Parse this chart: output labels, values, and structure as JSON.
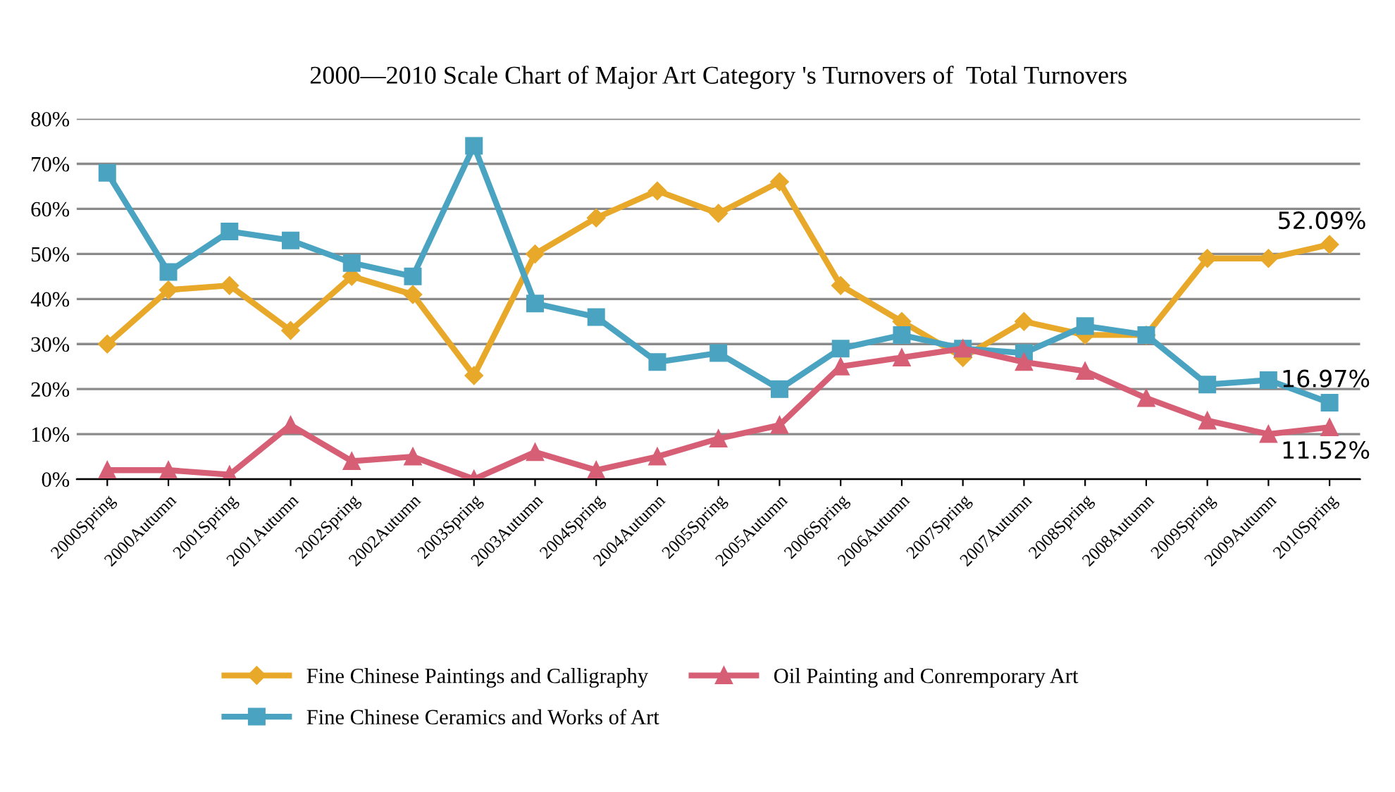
{
  "chart_data": {
    "type": "line",
    "title": "2000—2010 Scale Chart of Major Art Category 's Turnovers of  Total Turnovers",
    "categories": [
      "2000Spring",
      "2000Autumn",
      "2001Spring",
      "2001Autumn",
      "2002Spring",
      "2002Autumn",
      "2003Spring",
      "2003Autumn",
      "2004Spring",
      "2004Autumn",
      "2005Spring",
      "2005Autumn",
      "2006Spring",
      "2006Autumn",
      "2007Spring",
      "2007Autumn",
      "2008Spring",
      "2008Autumn",
      "2009Spring",
      "2009Autumn",
      "2010Spring"
    ],
    "series": [
      {
        "name": "Fine Chinese Paintings and Calligraphy",
        "color": "#e8a92a",
        "marker": "diamond",
        "values": [
          30,
          42,
          43,
          33,
          45,
          41,
          23,
          50,
          58,
          64,
          59,
          66,
          43,
          35,
          27,
          35,
          32,
          32,
          49,
          49,
          52.09
        ]
      },
      {
        "name": "Fine Chinese Ceramics and Works of Art",
        "color": "#4aa3c0",
        "marker": "square",
        "values": [
          68,
          46,
          55,
          53,
          48,
          45,
          74,
          39,
          36,
          26,
          28,
          20,
          29,
          32,
          29,
          28,
          34,
          32,
          21,
          22,
          16.97
        ]
      },
      {
        "name": "Oil Painting and Conremporary Art",
        "color": "#d65f76",
        "marker": "triangle",
        "values": [
          2,
          2,
          1,
          12,
          4,
          5,
          0,
          6,
          2,
          5,
          9,
          12,
          25,
          27,
          29,
          26,
          24,
          18,
          13,
          10,
          11.52
        ]
      }
    ],
    "ylim": [
      0,
      80
    ],
    "yticks": [
      {
        "value": 0,
        "label": "0%"
      },
      {
        "value": 10,
        "label": "10%"
      },
      {
        "value": 20,
        "label": "20%"
      },
      {
        "value": 30,
        "label": "30%"
      },
      {
        "value": 40,
        "label": "40%"
      },
      {
        "value": 50,
        "label": "50%"
      },
      {
        "value": 60,
        "label": "60%"
      },
      {
        "value": 70,
        "label": "70%"
      },
      {
        "value": 80,
        "label": "80%"
      }
    ],
    "grid": "y",
    "legend": "bottom",
    "annotations": [
      {
        "text": "52.09%",
        "x": "2010Spring",
        "y": 52.09
      },
      {
        "text": "16.97%",
        "x": "2010Spring",
        "y": 16.97
      },
      {
        "text": "11.52%",
        "x": "2010Spring",
        "y": 11.52
      }
    ]
  }
}
